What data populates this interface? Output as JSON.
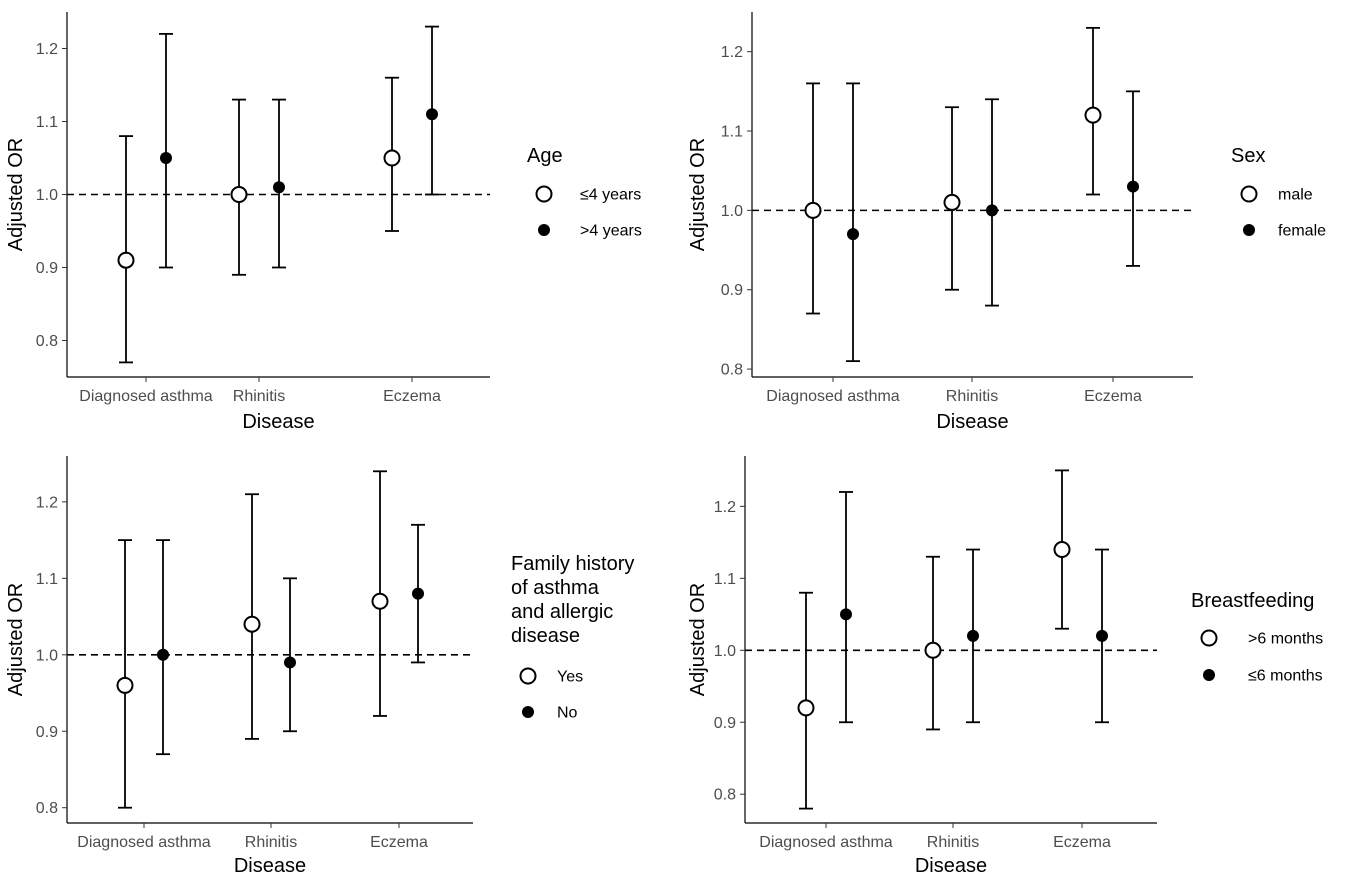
{
  "chart_data": [
    {
      "type": "scatter",
      "xlabel": "Disease",
      "ylabel": "Adjusted OR",
      "categories": [
        "Diagnosed asthma",
        "Rhinitis",
        "Eczema"
      ],
      "ylim": [
        0.75,
        1.25
      ],
      "yticks": [
        0.8,
        0.9,
        1.0,
        1.1,
        1.2
      ],
      "yticklabels": [
        "0.8",
        "0.9",
        "1.0",
        "1.1",
        "1.2"
      ],
      "reference_line": 1.0,
      "legend": {
        "title_lines": [
          "Age"
        ],
        "placement": "right"
      },
      "series": [
        {
          "name": "≤4 years",
          "marker": "open-circle",
          "values": [
            0.91,
            1.0,
            1.05
          ],
          "lower": [
            0.77,
            0.89,
            0.95
          ],
          "upper": [
            1.08,
            1.13,
            1.16
          ]
        },
        {
          "name": ">4 years",
          "marker": "filled-circle",
          "values": [
            1.05,
            1.01,
            1.11
          ],
          "lower": [
            0.9,
            0.9,
            1.0
          ],
          "upper": [
            1.22,
            1.13,
            1.23
          ]
        }
      ]
    },
    {
      "type": "scatter",
      "xlabel": "Disease",
      "ylabel": "Adjusted OR",
      "categories": [
        "Diagnosed asthma",
        "Rhinitis",
        "Eczema"
      ],
      "ylim": [
        0.79,
        1.25
      ],
      "yticks": [
        0.8,
        0.9,
        1.0,
        1.1,
        1.2
      ],
      "yticklabels": [
        "0.8",
        "0.9",
        "1.0",
        "1.1",
        "1.2"
      ],
      "reference_line": 1.0,
      "legend": {
        "title_lines": [
          "Sex"
        ],
        "placement": "right"
      },
      "series": [
        {
          "name": "male",
          "marker": "open-circle",
          "values": [
            1.0,
            1.01,
            1.12
          ],
          "lower": [
            0.87,
            0.9,
            1.02
          ],
          "upper": [
            1.16,
            1.13,
            1.23
          ]
        },
        {
          "name": "female",
          "marker": "filled-circle",
          "values": [
            0.97,
            1.0,
            1.03
          ],
          "lower": [
            0.81,
            0.88,
            0.93
          ],
          "upper": [
            1.16,
            1.14,
            1.15
          ]
        }
      ]
    },
    {
      "type": "scatter",
      "xlabel": "Disease",
      "ylabel": "Adjusted OR",
      "categories": [
        "Diagnosed asthma",
        "Rhinitis",
        "Eczema"
      ],
      "ylim": [
        0.78,
        1.26
      ],
      "yticks": [
        0.8,
        0.9,
        1.0,
        1.1,
        1.2
      ],
      "yticklabels": [
        "0.8",
        "0.9",
        "1.0",
        "1.1",
        "1.2"
      ],
      "reference_line": 1.0,
      "legend": {
        "title_lines": [
          "Family history",
          " of asthma",
          " and allergic",
          " disease"
        ],
        "placement": "right"
      },
      "series": [
        {
          "name": "Yes",
          "marker": "open-circle",
          "values": [
            0.96,
            1.04,
            1.07
          ],
          "lower": [
            0.8,
            0.89,
            0.92
          ],
          "upper": [
            1.15,
            1.21,
            1.24
          ]
        },
        {
          "name": "No",
          "marker": "filled-circle",
          "values": [
            1.0,
            0.99,
            1.08
          ],
          "lower": [
            0.87,
            0.9,
            0.99
          ],
          "upper": [
            1.15,
            1.1,
            1.17
          ]
        }
      ]
    },
    {
      "type": "scatter",
      "xlabel": "Disease",
      "ylabel": "Adjusted OR",
      "categories": [
        "Diagnosed asthma",
        "Rhinitis",
        "Eczema"
      ],
      "ylim": [
        0.76,
        1.27
      ],
      "yticks": [
        0.8,
        0.9,
        1.0,
        1.1,
        1.2
      ],
      "yticklabels": [
        "0.8",
        "0.9",
        "1.0",
        "1.1",
        "1.2"
      ],
      "reference_line": 1.0,
      "legend": {
        "title_lines": [
          "Breastfeeding"
        ],
        "placement": "right"
      },
      "series": [
        {
          "name": ">6 months",
          "marker": "open-circle",
          "values": [
            0.92,
            1.0,
            1.14
          ],
          "lower": [
            0.78,
            0.89,
            1.03
          ],
          "upper": [
            1.08,
            1.13,
            1.25
          ]
        },
        {
          "name": "≤6 months",
          "marker": "filled-circle",
          "values": [
            1.05,
            1.02,
            1.02
          ],
          "lower": [
            0.9,
            0.9,
            0.9
          ],
          "upper": [
            1.22,
            1.14,
            1.14
          ]
        }
      ]
    }
  ]
}
